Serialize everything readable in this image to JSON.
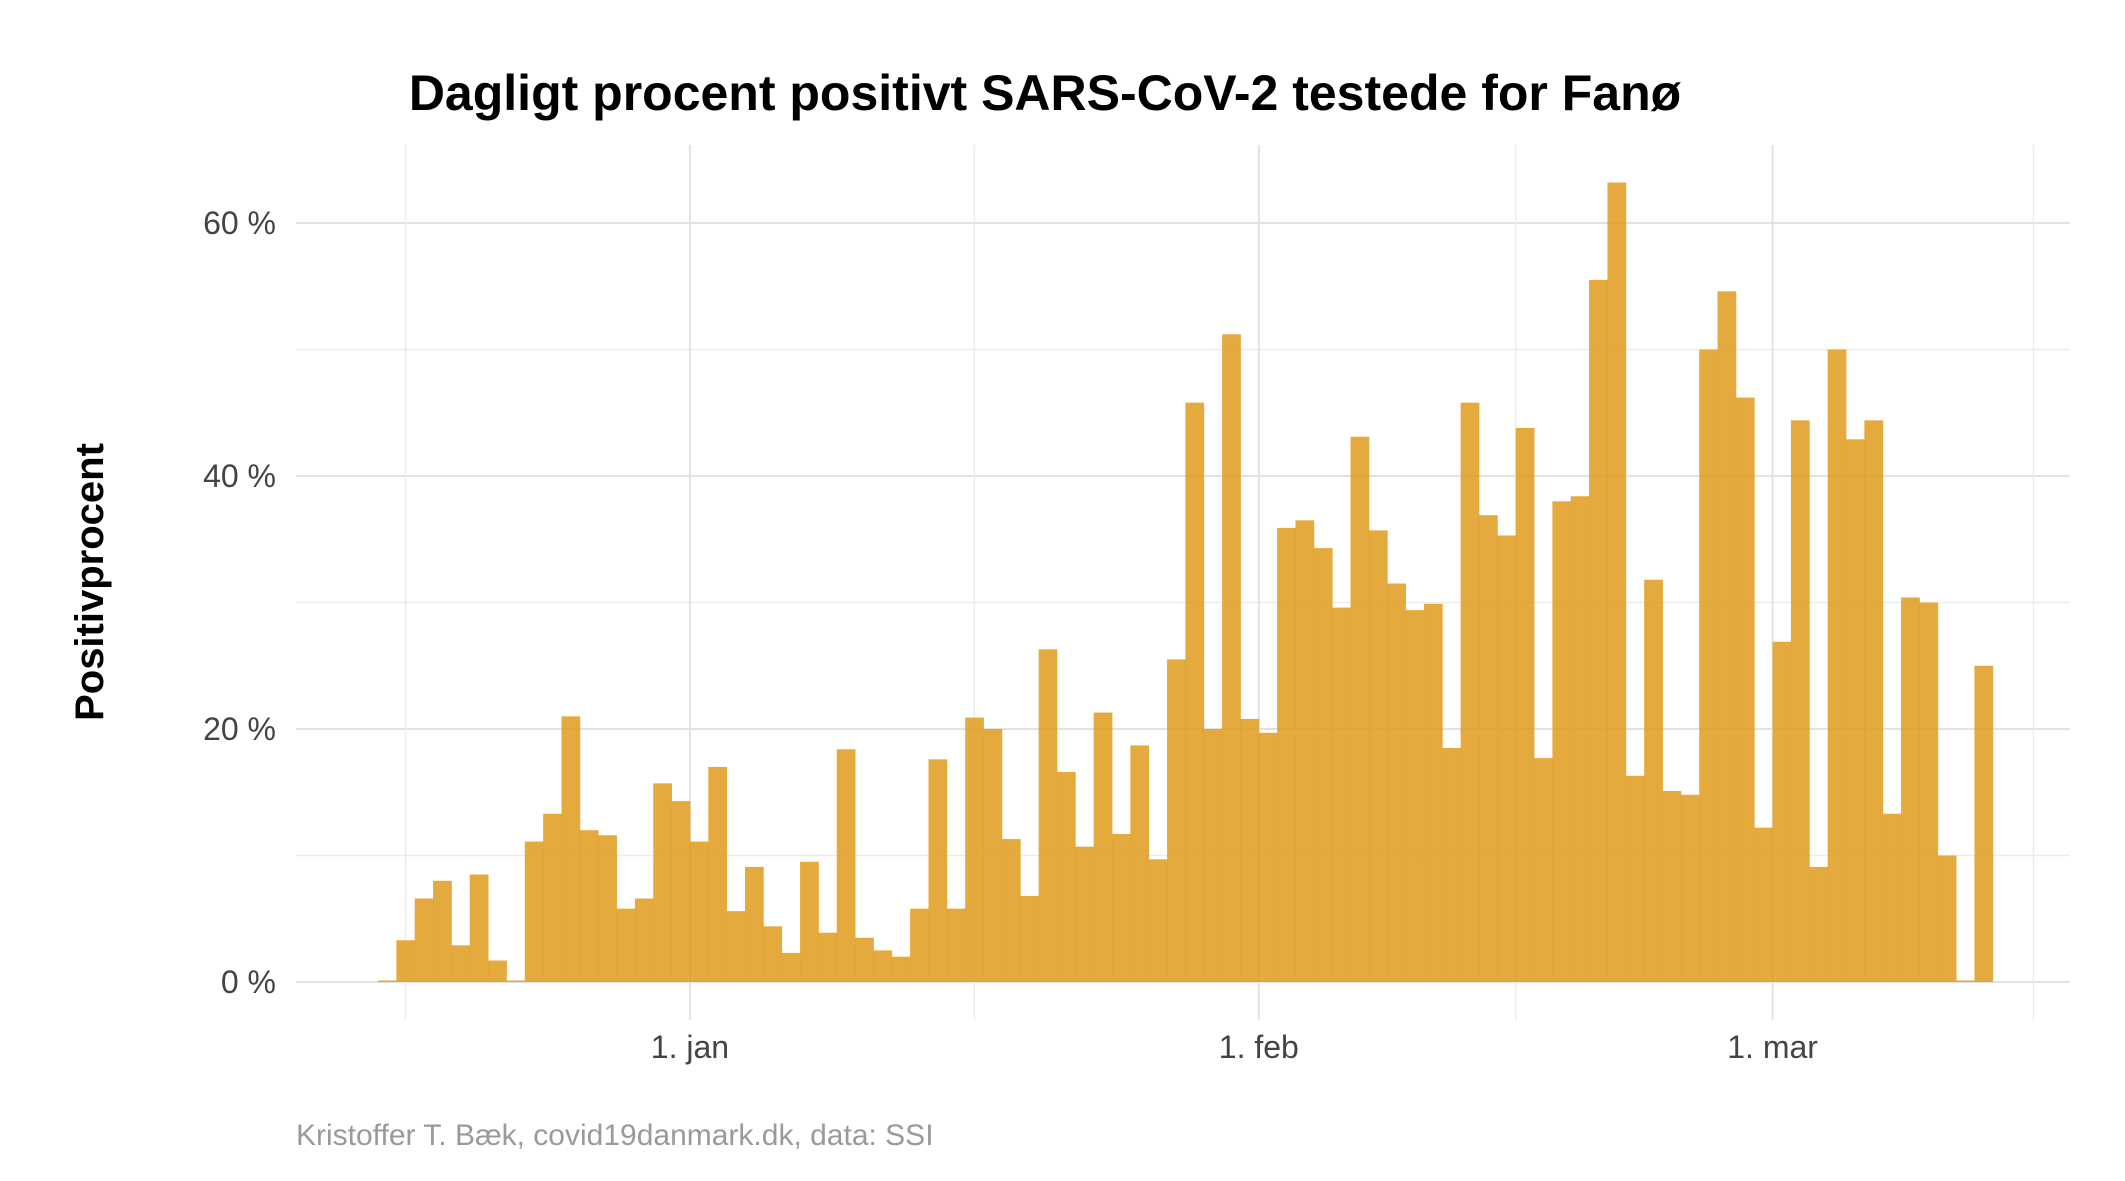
{
  "chart_data": {
    "type": "bar",
    "title": "Dagligt procent positivt SARS-CoV-2 testede for Fanø",
    "ylabel": "Positivprocent",
    "xlabel": "",
    "caption": "Kristoffer T. Bæk, covid19danmark.dk, data: SSI",
    "x_start": "2020-12-15",
    "x_ticks": [
      {
        "date": "2021-01-01",
        "label": "1. jan"
      },
      {
        "date": "2021-02-01",
        "label": "1. feb"
      },
      {
        "date": "2021-03-01",
        "label": "1. mar"
      }
    ],
    "y_ticks": [
      {
        "value": 0,
        "label": "0 %"
      },
      {
        "value": 20,
        "label": "20 %"
      },
      {
        "value": 40,
        "label": "40 %"
      },
      {
        "value": 60,
        "label": "60 %"
      }
    ],
    "ylim": [
      0,
      64
    ],
    "grid": true,
    "bar_color": "#E09B1C",
    "values": [
      0,
      3.3,
      6.6,
      8.0,
      2.9,
      8.5,
      1.7,
      0,
      11.1,
      13.3,
      21.0,
      12.0,
      11.6,
      5.8,
      6.6,
      15.7,
      14.3,
      11.1,
      17.0,
      5.6,
      9.1,
      4.4,
      2.3,
      9.5,
      3.9,
      18.4,
      3.5,
      2.5,
      2.0,
      5.8,
      17.6,
      5.8,
      20.9,
      20.0,
      11.3,
      6.8,
      26.3,
      16.6,
      10.7,
      21.3,
      11.7,
      18.7,
      9.7,
      25.5,
      45.8,
      20.0,
      51.2,
      20.8,
      19.7,
      35.9,
      36.5,
      34.3,
      29.6,
      43.1,
      35.7,
      31.5,
      29.4,
      29.9,
      18.5,
      45.8,
      36.9,
      35.3,
      43.8,
      17.7,
      38.0,
      38.4,
      55.5,
      63.2,
      16.3,
      31.8,
      15.1,
      14.8,
      50.0,
      54.6,
      46.2,
      12.2,
      26.9,
      44.4,
      9.1,
      50.0,
      42.9,
      44.4,
      13.3,
      30.4,
      30.0,
      10.0,
      0,
      25.0
    ]
  }
}
